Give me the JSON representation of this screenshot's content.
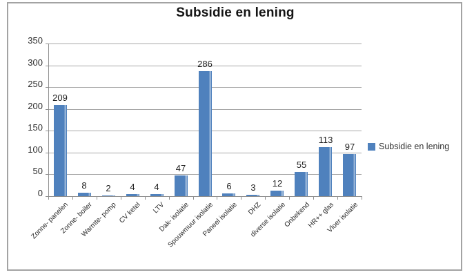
{
  "window": {
    "background": "#ffffff",
    "frame_border_color": "#a3a3a3"
  },
  "chart_data": {
    "type": "bar",
    "title": "Subsidie en lening",
    "categories": [
      "Zonne- panelen",
      "Zonne- boiler",
      "Warmte- pomp",
      "CV ketel",
      "LTV",
      "Dak- isolatie",
      "Spouwmuur isolatie",
      "Paneel isolatie",
      "DHZ",
      "diverse isolatie",
      "Onbekend",
      "HR++ glas",
      "Vloer isolatie"
    ],
    "series": [
      {
        "name": "Subsidie en lening",
        "color": "#4f81bd",
        "highlight_color": "#95b3d7",
        "values": [
          209,
          8,
          2,
          4,
          4,
          47,
          286,
          6,
          3,
          12,
          55,
          113,
          97
        ]
      }
    ],
    "xlabel": "",
    "ylabel": "",
    "ylim": [
      0,
      350
    ],
    "ytick_step": 50,
    "ytick_labels": [
      "0",
      "50",
      "100",
      "150",
      "200",
      "250",
      "300",
      "350"
    ],
    "grid": true,
    "data_labels": true,
    "legend_position": "right",
    "category_label_rotation_deg": 45,
    "grid_color": "#a6a6a6",
    "axis_color": "#8e8e8e",
    "text_color": "#2e2e2e"
  }
}
